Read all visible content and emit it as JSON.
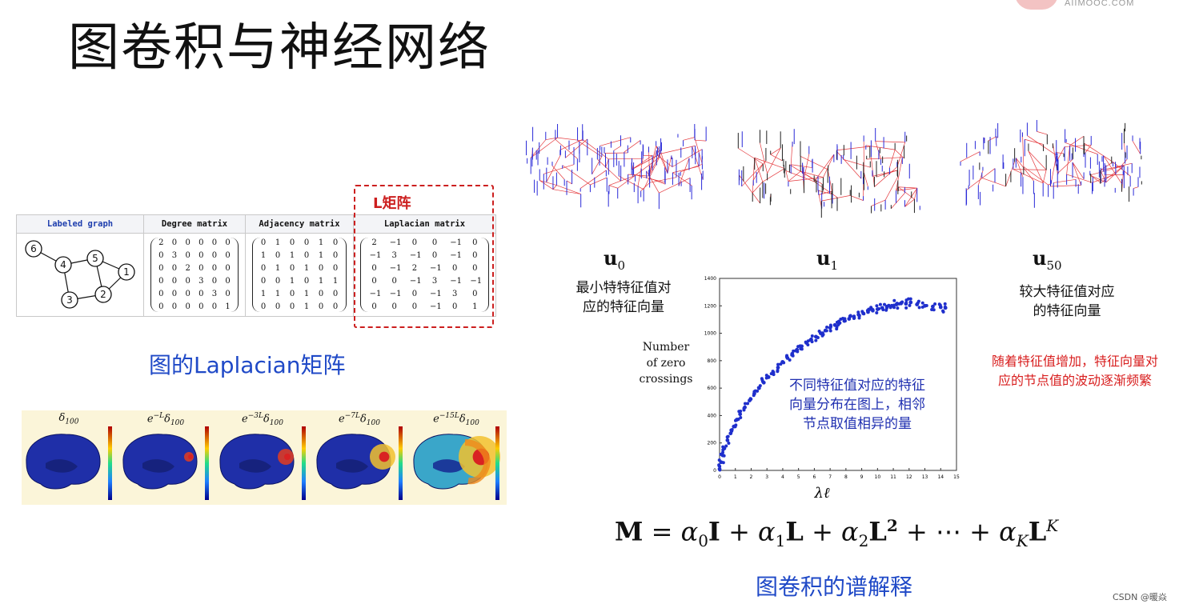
{
  "title": "图卷积与神经网络",
  "logo": {
    "text": "AIIMOOC.COM"
  },
  "laplacian_section": {
    "highlight_label": "L矩阵",
    "caption": "图的Laplacian矩阵",
    "table": {
      "headers": [
        "Labeled graph",
        "Degree matrix",
        "Adjacency matrix",
        "Laplacian matrix"
      ],
      "graph_nodes": [
        "6",
        "4",
        "5",
        "1",
        "3",
        "2"
      ],
      "degree_matrix": [
        [
          "2",
          "0",
          "0",
          "0",
          "0",
          "0"
        ],
        [
          "0",
          "3",
          "0",
          "0",
          "0",
          "0"
        ],
        [
          "0",
          "0",
          "2",
          "0",
          "0",
          "0"
        ],
        [
          "0",
          "0",
          "0",
          "3",
          "0",
          "0"
        ],
        [
          "0",
          "0",
          "0",
          "0",
          "3",
          "0"
        ],
        [
          "0",
          "0",
          "0",
          "0",
          "0",
          "1"
        ]
      ],
      "adjacency_matrix": [
        [
          "0",
          "1",
          "0",
          "0",
          "1",
          "0"
        ],
        [
          "1",
          "0",
          "1",
          "0",
          "1",
          "0"
        ],
        [
          "0",
          "1",
          "0",
          "1",
          "0",
          "0"
        ],
        [
          "0",
          "0",
          "1",
          "0",
          "1",
          "1"
        ],
        [
          "1",
          "1",
          "0",
          "1",
          "0",
          "0"
        ],
        [
          "0",
          "0",
          "0",
          "1",
          "0",
          "0"
        ]
      ],
      "laplacian_matrix": [
        [
          "2",
          "−1",
          "0",
          "0",
          "−1",
          "0"
        ],
        [
          "−1",
          "3",
          "−1",
          "0",
          "−1",
          "0"
        ],
        [
          "0",
          "−1",
          "2",
          "−1",
          "0",
          "0"
        ],
        [
          "0",
          "0",
          "−1",
          "3",
          "−1",
          "−1"
        ],
        [
          "−1",
          "−1",
          "0",
          "−1",
          "3",
          "0"
        ],
        [
          "0",
          "0",
          "0",
          "−1",
          "0",
          "1"
        ]
      ]
    }
  },
  "brain_panels": [
    {
      "main": "δ",
      "sup": "",
      "sub": "100",
      "prefix": ""
    },
    {
      "main": "δ",
      "sup": "−L",
      "sub": "100",
      "prefix": "e"
    },
    {
      "main": "δ",
      "sup": "−3L",
      "sub": "100",
      "prefix": "e"
    },
    {
      "main": "δ",
      "sup": "−7L",
      "sub": "100",
      "prefix": "e"
    },
    {
      "main": "δ",
      "sup": "−15L",
      "sub": "100",
      "prefix": "e"
    }
  ],
  "eigen_section": {
    "u0": {
      "label": "u",
      "sub": "0"
    },
    "u1": {
      "label": "u",
      "sub": "1"
    },
    "u50": {
      "label": "u",
      "sub": "50"
    },
    "note_small": [
      "最小特特征值对",
      "应的特征向量"
    ],
    "note_large": [
      "较大特征值对应",
      "的特征向量"
    ],
    "note_red": [
      "随着特征值增加，特征向量对",
      "应的节点值的波动逐渐频繁"
    ],
    "overlay": [
      "不同特征值对应的特征",
      "向量分布在图上，相邻",
      "节点取值相异的量"
    ],
    "caption": "图卷积的谱解释"
  },
  "chart_data": {
    "type": "scatter",
    "title": "",
    "xlabel": "λℓ",
    "ylabel": "Number of zero crossings",
    "xlim": [
      0,
      15
    ],
    "ylim": [
      0,
      1400
    ],
    "xticks": [
      "0",
      "1",
      "2",
      "3",
      "4",
      "5",
      "6",
      "7",
      "8",
      "9",
      "10",
      "11",
      "12",
      "13",
      "14",
      "15"
    ],
    "yticks": [
      "0",
      "200",
      "400",
      "600",
      "800",
      "1000",
      "1200",
      "1400"
    ],
    "grid": false,
    "series": [
      {
        "color": "#1f2fcc",
        "x": [
          0.0,
          0.1,
          0.2,
          0.3,
          0.5,
          0.7,
          0.9,
          1.1,
          1.3,
          1.6,
          1.9,
          2.2,
          2.5,
          2.8,
          3.1,
          3.4,
          3.7,
          4.0,
          4.3,
          4.6,
          4.9,
          5.2,
          5.5,
          5.8,
          6.1,
          6.4,
          6.7,
          7.0,
          7.3,
          7.6,
          7.9,
          8.2,
          8.5,
          8.8,
          9.1,
          9.4,
          9.7,
          10.0,
          10.3,
          10.6,
          10.9,
          11.2,
          11.5,
          11.8,
          12.1,
          12.5,
          13.0,
          13.5,
          14.0,
          14.3
        ],
        "y": [
          10,
          60,
          110,
          160,
          220,
          270,
          320,
          370,
          410,
          460,
          510,
          560,
          600,
          640,
          680,
          715,
          750,
          790,
          820,
          850,
          880,
          905,
          930,
          955,
          975,
          1000,
          1020,
          1040,
          1060,
          1075,
          1090,
          1105,
          1120,
          1135,
          1145,
          1155,
          1165,
          1175,
          1185,
          1195,
          1200,
          1210,
          1220,
          1215,
          1225,
          1210,
          1200,
          1195,
          1190,
          1185
        ]
      }
    ]
  },
  "formula": {
    "M": "M",
    "eq": " = ",
    "terms": [
      "α₀I",
      "α₁L",
      "α₂L²",
      "⋯",
      "α_K L^K"
    ],
    "text": "M = α₀I + α₁L + α₂L² + ⋯ + α_K L^K"
  },
  "watermark": "CSDN @暖焱"
}
